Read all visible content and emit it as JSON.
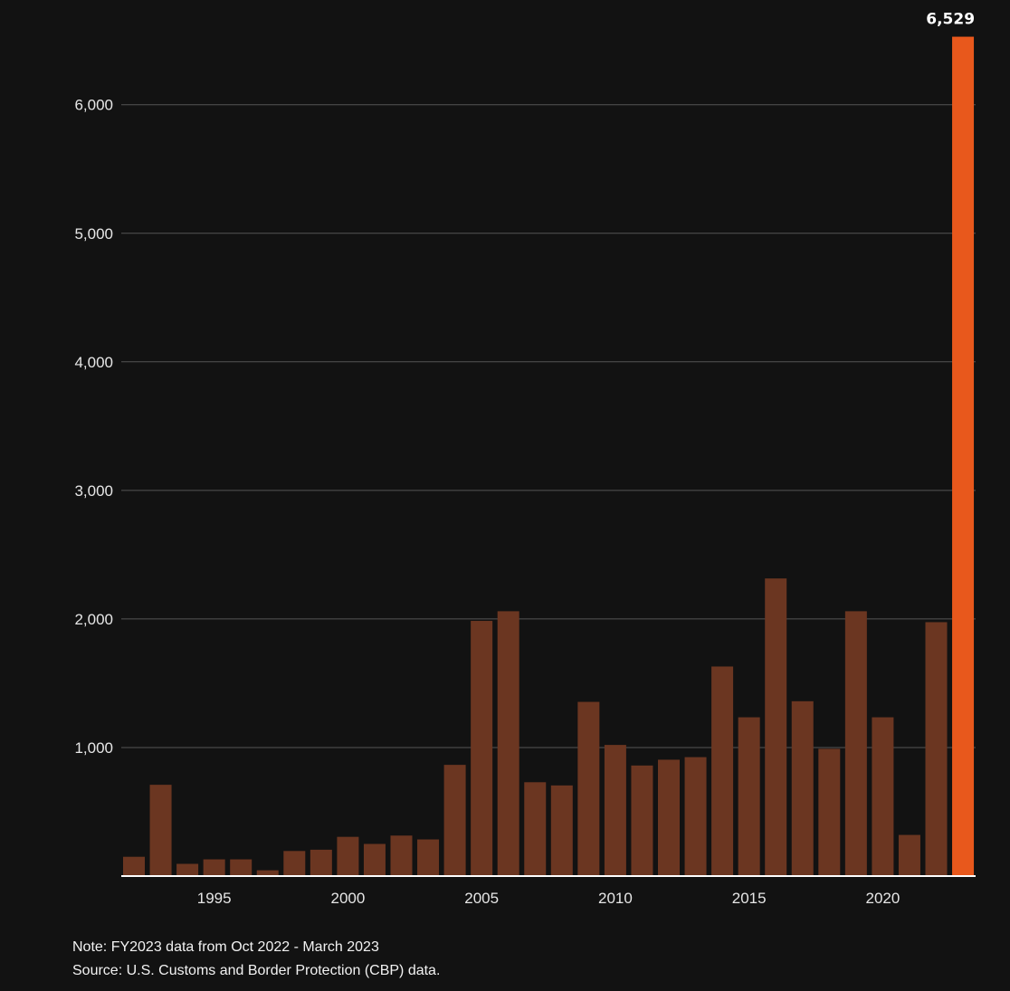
{
  "chart_data": {
    "type": "bar",
    "categories": [
      "1992",
      "1993",
      "1994",
      "1995",
      "1996",
      "1997",
      "1998",
      "1999",
      "2000",
      "2001",
      "2002",
      "2003",
      "2004",
      "2005",
      "2006",
      "2007",
      "2008",
      "2009",
      "2010",
      "2011",
      "2012",
      "2013",
      "2014",
      "2015",
      "2016",
      "2017",
      "2018",
      "2019",
      "2020",
      "2021",
      "2022",
      "2023"
    ],
    "values": [
      150,
      710,
      95,
      130,
      130,
      45,
      195,
      205,
      305,
      250,
      315,
      285,
      865,
      1985,
      2060,
      730,
      705,
      1355,
      1020,
      860,
      905,
      925,
      1630,
      1235,
      2315,
      1360,
      990,
      2060,
      1235,
      320,
      1975,
      6529
    ],
    "highlight_index": 31,
    "highlight_label": "6,529",
    "xticks": [
      "1995",
      "2000",
      "2005",
      "2010",
      "2015",
      "2020"
    ],
    "yticks": [
      "1,000",
      "2,000",
      "3,000",
      "4,000",
      "5,000",
      "6,000"
    ],
    "ylim": [
      0,
      6529
    ],
    "grid": true,
    "title": "",
    "xlabel": "",
    "ylabel": "",
    "colors": {
      "background": "#121212",
      "bar": "#6b3621",
      "highlight": "#e8581c",
      "grid": "#555555",
      "baseline": "#ffffff"
    }
  },
  "footer": {
    "note": "Note: FY2023 data from Oct 2022 - March 2023",
    "source": "Source: U.S. Customs and Border Protection (CBP) data."
  }
}
